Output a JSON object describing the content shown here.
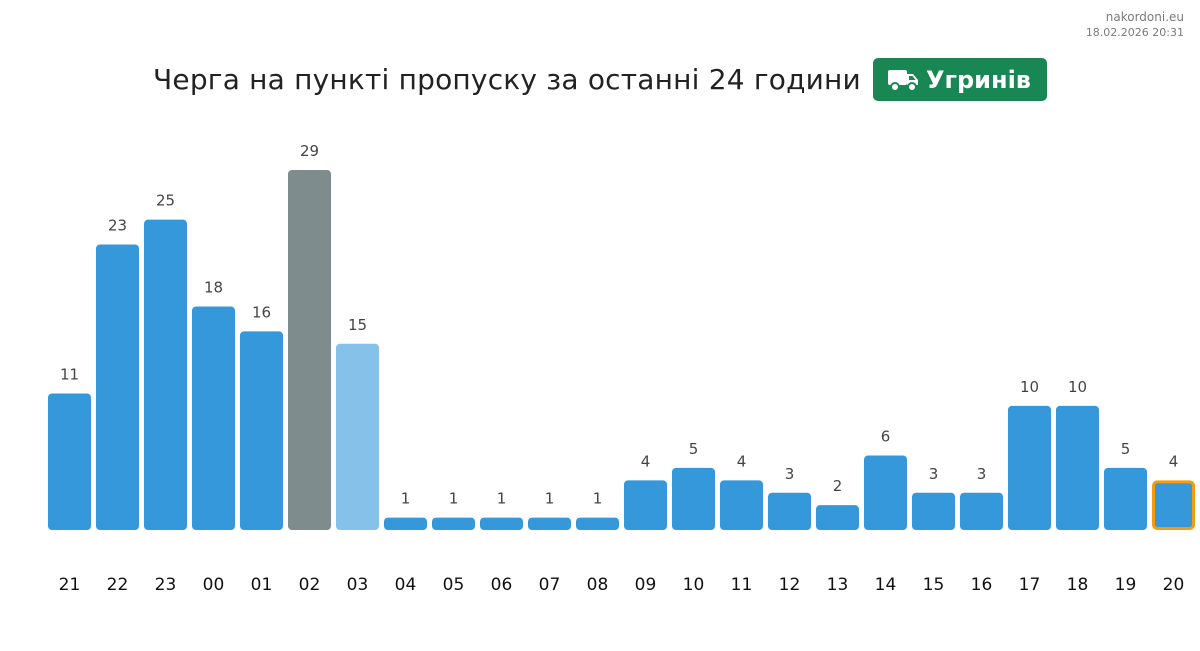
{
  "source": {
    "site": "nakordoni.eu",
    "timestamp": "18.02.2026 20:31"
  },
  "header": {
    "title": "Черга на пункті пропуску за останні 24 години",
    "badge_label": "Угринів",
    "badge_icon": "truck-icon"
  },
  "colors": {
    "bar": "#3498db",
    "bar_peak": "#7f8c8d",
    "bar_light": "#85c1e9",
    "current_outline": "#f39c12",
    "badge": "#198754"
  },
  "chart_data": {
    "type": "bar",
    "title": "Черга на пункті пропуску за останні 24 години",
    "xlabel": "",
    "ylabel": "",
    "categories": [
      "21",
      "22",
      "23",
      "00",
      "01",
      "02",
      "03",
      "04",
      "05",
      "06",
      "07",
      "08",
      "09",
      "10",
      "11",
      "12",
      "13",
      "14",
      "15",
      "16",
      "17",
      "18",
      "19",
      "20"
    ],
    "values": [
      11,
      23,
      25,
      18,
      16,
      29,
      15,
      1,
      1,
      1,
      1,
      1,
      4,
      5,
      4,
      3,
      2,
      6,
      3,
      3,
      10,
      10,
      5,
      4
    ],
    "highlight": {
      "peak_category": "02",
      "light_category": "03",
      "current_category": "20"
    },
    "ylim": [
      0,
      29
    ],
    "grid": false,
    "legend": "none"
  }
}
